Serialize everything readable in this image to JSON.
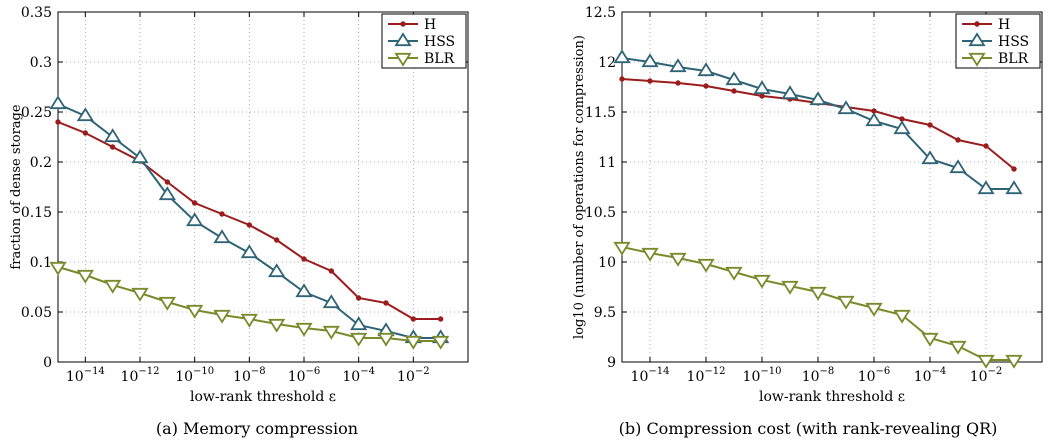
{
  "colors": {
    "H": "#9b1c1c",
    "HSS": "#2f6476",
    "BLR": "#7a8a2a",
    "grid": "#9a9a9a"
  },
  "chart_data": [
    {
      "type": "line",
      "caption": "(a) Memory compression",
      "xlabel": "low-rank threshold ε",
      "ylabel": "fraction of dense storage",
      "x_scale": "log10",
      "xlim": [
        1e-15,
        1
      ],
      "ylim": [
        0,
        0.35
      ],
      "x_ticks": [
        1e-14,
        1e-12,
        1e-10,
        1e-08,
        1e-06,
        0.0001,
        0.01
      ],
      "y_ticks": [
        0,
        0.05,
        0.1,
        0.15,
        0.2,
        0.25,
        0.3,
        0.35
      ],
      "y_tick_labels": [
        "0",
        "0.05",
        "0.1",
        "0.15",
        "0.2",
        "0.25",
        "0.3",
        "0.35"
      ],
      "grid": true,
      "legend_position": "top-right",
      "series": [
        {
          "name": "H",
          "marker": "dot",
          "color_key": "H",
          "x": [
            1e-15,
            1e-14,
            1e-13,
            1e-12,
            1e-11,
            1e-10,
            1e-09,
            1e-08,
            1e-07,
            1e-06,
            1e-05,
            0.0001,
            0.001,
            0.01,
            0.1
          ],
          "values": [
            0.24,
            0.229,
            0.215,
            0.201,
            0.18,
            0.159,
            0.148,
            0.137,
            0.122,
            0.103,
            0.091,
            0.064,
            0.059,
            0.043,
            0.043
          ]
        },
        {
          "name": "HSS",
          "marker": "triangle-up",
          "color_key": "HSS",
          "x": [
            1e-15,
            1e-14,
            1e-13,
            1e-12,
            1e-11,
            1e-10,
            1e-09,
            1e-08,
            1e-07,
            1e-06,
            1e-05,
            0.0001,
            0.001,
            0.01,
            0.1
          ],
          "values": [
            0.258,
            0.246,
            0.225,
            0.204,
            0.167,
            0.141,
            0.124,
            0.109,
            0.09,
            0.07,
            0.059,
            0.037,
            0.031,
            0.024,
            0.024
          ]
        },
        {
          "name": "BLR",
          "marker": "triangle-down",
          "color_key": "BLR",
          "x": [
            1e-15,
            1e-14,
            1e-13,
            1e-12,
            1e-11,
            1e-10,
            1e-09,
            1e-08,
            1e-07,
            1e-06,
            1e-05,
            0.0001,
            0.001,
            0.01,
            0.1
          ],
          "values": [
            0.095,
            0.087,
            0.077,
            0.069,
            0.06,
            0.052,
            0.047,
            0.043,
            0.038,
            0.034,
            0.031,
            0.024,
            0.024,
            0.021,
            0.021
          ]
        }
      ]
    },
    {
      "type": "line",
      "caption": "(b) Compression cost (with rank-revealing QR)",
      "xlabel": "low-rank threshold ε",
      "ylabel": "log10 (number of operations for compression)",
      "x_scale": "log10",
      "xlim": [
        1e-15,
        1
      ],
      "ylim": [
        9,
        12.5
      ],
      "x_ticks": [
        1e-14,
        1e-12,
        1e-10,
        1e-08,
        1e-06,
        0.0001,
        0.01
      ],
      "y_ticks": [
        9,
        9.5,
        10,
        10.5,
        11,
        11.5,
        12,
        12.5
      ],
      "y_tick_labels": [
        "9",
        "9.5",
        "10",
        "10.5",
        "11",
        "11.5",
        "12",
        "12.5"
      ],
      "grid": true,
      "legend_position": "top-right",
      "series": [
        {
          "name": "H",
          "marker": "dot",
          "color_key": "H",
          "x": [
            1e-15,
            1e-14,
            1e-13,
            1e-12,
            1e-11,
            1e-10,
            1e-09,
            1e-08,
            1e-07,
            1e-06,
            1e-05,
            0.0001,
            0.001,
            0.01,
            0.1
          ],
          "values": [
            11.83,
            11.81,
            11.79,
            11.76,
            11.71,
            11.66,
            11.63,
            11.59,
            11.55,
            11.51,
            11.43,
            11.37,
            11.22,
            11.16,
            10.93
          ]
        },
        {
          "name": "HSS",
          "marker": "triangle-up",
          "color_key": "HSS",
          "x": [
            1e-15,
            1e-14,
            1e-13,
            1e-12,
            1e-11,
            1e-10,
            1e-09,
            1e-08,
            1e-07,
            1e-06,
            1e-05,
            0.0001,
            0.001,
            0.01,
            0.1
          ],
          "values": [
            12.04,
            12.0,
            11.95,
            11.91,
            11.82,
            11.73,
            11.68,
            11.62,
            11.53,
            11.41,
            11.33,
            11.03,
            10.94,
            10.73,
            10.73
          ]
        },
        {
          "name": "BLR",
          "marker": "triangle-down",
          "color_key": "BLR",
          "x": [
            1e-15,
            1e-14,
            1e-13,
            1e-12,
            1e-11,
            1e-10,
            1e-09,
            1e-08,
            1e-07,
            1e-06,
            1e-05,
            0.0001,
            0.001,
            0.01,
            0.1
          ],
          "values": [
            10.15,
            10.09,
            10.04,
            9.98,
            9.9,
            9.82,
            9.76,
            9.7,
            9.61,
            9.54,
            9.47,
            9.24,
            9.16,
            9.02,
            9.02
          ]
        }
      ]
    }
  ]
}
